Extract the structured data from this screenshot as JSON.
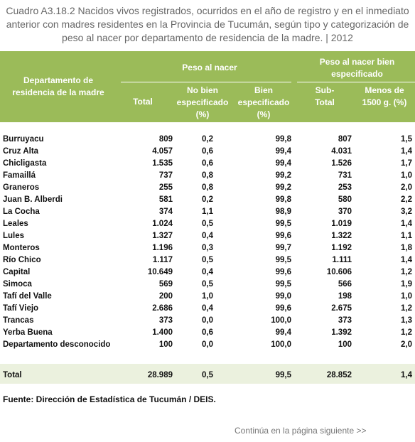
{
  "title": "Cuadro A3.18.2 Nacidos vivos registrados, ocurridos en el año de registro y en el inmediato anterior con madres residentes en la Provincia de Tucumán, según tipo y categorización de peso al nacer por departamento de residencia de la madre. | 2012",
  "header": {
    "department": "Departamento de residencia de la madre",
    "group_1": "Peso al nacer",
    "group_2": "Peso al nacer bien especificado",
    "columns": [
      "Total",
      "No bien especificado (%)",
      "Bien especificado (%)",
      "Sub-Total",
      "Menos de 1500 g. (%)"
    ]
  },
  "rows": [
    [
      "Burruyacu",
      "809",
      "0,2",
      "99,8",
      "807",
      "1,5"
    ],
    [
      "Cruz Alta",
      "4.057",
      "0,6",
      "99,4",
      "4.031",
      "1,4"
    ],
    [
      "Chicligasta",
      "1.535",
      "0,6",
      "99,4",
      "1.526",
      "1,7"
    ],
    [
      "Famaillá",
      "737",
      "0,8",
      "99,2",
      "731",
      "1,0"
    ],
    [
      "Graneros",
      "255",
      "0,8",
      "99,2",
      "253",
      "2,0"
    ],
    [
      "Juan B. Alberdi",
      "581",
      "0,2",
      "99,8",
      "580",
      "2,2"
    ],
    [
      "La Cocha",
      "374",
      "1,1",
      "98,9",
      "370",
      "3,2"
    ],
    [
      "Leales",
      "1.024",
      "0,5",
      "99,5",
      "1.019",
      "1,4"
    ],
    [
      "Lules",
      "1.327",
      "0,4",
      "99,6",
      "1.322",
      "1,1"
    ],
    [
      "Monteros",
      "1.196",
      "0,3",
      "99,7",
      "1.192",
      "1,8"
    ],
    [
      "Río Chico",
      "1.117",
      "0,5",
      "99,5",
      "1.111",
      "1,4"
    ],
    [
      "Capital",
      "10.649",
      "0,4",
      "99,6",
      "10.606",
      "1,2"
    ],
    [
      "Simoca",
      "569",
      "0,5",
      "99,5",
      "566",
      "1,9"
    ],
    [
      "Tafí del Valle",
      "200",
      "1,0",
      "99,0",
      "198",
      "1,0"
    ],
    [
      "Tafí Viejo",
      "2.686",
      "0,4",
      "99,6",
      "2.675",
      "1,2"
    ],
    [
      "Trancas",
      "373",
      "0,0",
      "100,0",
      "373",
      "1,3"
    ],
    [
      "Yerba Buena",
      "1.400",
      "0,6",
      "99,4",
      "1.392",
      "1,2"
    ],
    [
      "Departamento desconocido",
      "100",
      "0,0",
      "100,0",
      "100",
      "2,0"
    ]
  ],
  "total": [
    "Total",
    "28.989",
    "0,5",
    "99,5",
    "28.852",
    "1,4"
  ],
  "source": "Fuente: Dirección de Estadística de Tucumán / DEIS.",
  "continued": "Continúa en la página siguiente >>"
}
